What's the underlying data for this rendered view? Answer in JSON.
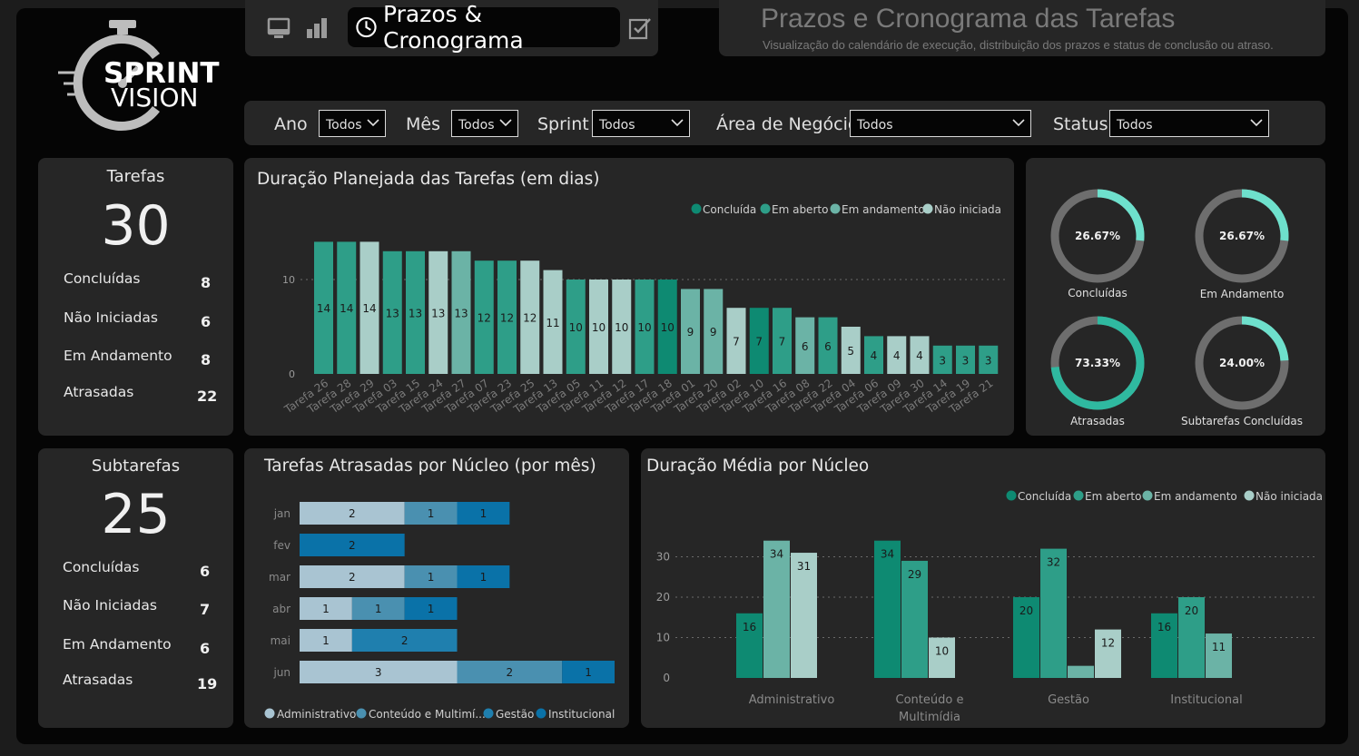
{
  "logo": {
    "line1": "SPRINT",
    "line2": "VISION"
  },
  "nav": {
    "active_label": "Prazos & Cronograma"
  },
  "header": {
    "title": "Prazos e Cronograma das Tarefas",
    "subtitle": "Visualização do calendário de execução, distribuição dos prazos e status de conclusão ou atraso."
  },
  "filters": [
    {
      "label": "Ano",
      "value": "Todos"
    },
    {
      "label": "Mês",
      "value": "Todos"
    },
    {
      "label": "Sprint",
      "value": "Todos"
    },
    {
      "label": "Área de Negócio",
      "value": "Todos"
    },
    {
      "label": "Status",
      "value": "Todos"
    }
  ],
  "tarefas_card": {
    "title": "Tarefas",
    "total": "30",
    "rows": [
      {
        "label": "Concluídas",
        "value": "8"
      },
      {
        "label": "Não Iniciadas",
        "value": "6"
      },
      {
        "label": "Em Andamento",
        "value": "8"
      },
      {
        "label": "Atrasadas",
        "value": "22"
      }
    ]
  },
  "subtarefas_card": {
    "title": "Subtarefas",
    "total": "25",
    "rows": [
      {
        "label": "Concluídas",
        "value": "6"
      },
      {
        "label": "Não Iniciadas",
        "value": "7"
      },
      {
        "label": "Em Andamento",
        "value": "6"
      },
      {
        "label": "Atrasadas",
        "value": "19"
      }
    ]
  },
  "colors": {
    "concluida": "#0e8a72",
    "em_aberto": "#2e9e88",
    "em_andamento": "#6bb3a6",
    "nao_iniciada": "#a9cec8",
    "admin": "#a9c4d2",
    "conteudo": "#4a90b0",
    "gestao": "#1f7fae",
    "institucional": "#0a72a8"
  },
  "chart_data": [
    {
      "type": "bar",
      "title": "Duração Planejada das Tarefas (em dias)",
      "legend": [
        "Concluída",
        "Em aberto",
        "Em andamento",
        "Não iniciada"
      ],
      "legend_position": "top-right",
      "yticks": [
        "0",
        "10"
      ],
      "ylim": [
        0,
        16
      ],
      "grid": true,
      "categories": [
        "Tarefa 26",
        "Tarefa 28",
        "Tarefa 29",
        "Tarefa 03",
        "Tarefa 15",
        "Tarefa 24",
        "Tarefa 27",
        "Tarefa 07",
        "Tarefa 23",
        "Tarefa 25",
        "Tarefa 13",
        "Tarefa 05",
        "Tarefa 11",
        "Tarefa 12",
        "Tarefa 17",
        "Tarefa 18",
        "Tarefa 01",
        "Tarefa 20",
        "Tarefa 02",
        "Tarefa 10",
        "Tarefa 16",
        "Tarefa 08",
        "Tarefa 22",
        "Tarefa 04",
        "Tarefa 06",
        "Tarefa 09",
        "Tarefa 30",
        "Tarefa 14",
        "Tarefa 19",
        "Tarefa 21"
      ],
      "values": [
        14,
        14,
        14,
        13,
        13,
        13,
        13,
        12,
        12,
        12,
        11,
        10,
        10,
        10,
        10,
        10,
        9,
        9,
        7,
        7,
        7,
        6,
        6,
        5,
        4,
        4,
        4,
        3,
        3,
        3
      ],
      "status": [
        "Em aberto",
        "Em aberto",
        "Não iniciada",
        "Em aberto",
        "Em aberto",
        "Não iniciada",
        "Em andamento",
        "Em aberto",
        "Em aberto",
        "Não iniciada",
        "Não iniciada",
        "Em aberto",
        "Não iniciada",
        "Não iniciada",
        "Em aberto",
        "Concluída",
        "Em andamento",
        "Em andamento",
        "Não iniciada",
        "Concluída",
        "Em aberto",
        "Em andamento",
        "Em aberto",
        "Não iniciada",
        "Em aberto",
        "Não iniciada",
        "Não iniciada",
        "Em aberto",
        "Em aberto",
        "Em aberto"
      ]
    },
    {
      "type": "pie",
      "title": "",
      "gauges": [
        {
          "label": "Concluídas",
          "value": 26.67,
          "text": "26.67%",
          "color": "#6ee0cc"
        },
        {
          "label": "Em Andamento",
          "value": 26.67,
          "text": "26.67%",
          "color": "#6ee0cc"
        },
        {
          "label": "Atrasadas",
          "value": 73.33,
          "text": "73.33%",
          "color": "#2fb9a0"
        },
        {
          "label": "Subtarefas Concluídas",
          "value": 24.0,
          "text": "24.00%",
          "color": "#6ee0cc"
        }
      ]
    },
    {
      "type": "bar",
      "orientation": "horizontal-stacked",
      "title": "Tarefas Atrasadas por Núcleo (por mês)",
      "categories": [
        "jan",
        "fev",
        "mar",
        "abr",
        "mai",
        "jun"
      ],
      "legend_position": "bottom",
      "series": [
        {
          "name": "Administrativo",
          "values": [
            2,
            0,
            2,
            1,
            1,
            3
          ]
        },
        {
          "name": "Conteúdo e Multimí...",
          "values": [
            1,
            0,
            1,
            1,
            0,
            2
          ]
        },
        {
          "name": "Gestão",
          "values": [
            0,
            0,
            0,
            0,
            2,
            0
          ]
        },
        {
          "name": "Institucional",
          "values": [
            1,
            2,
            1,
            1,
            0,
            1
          ]
        }
      ]
    },
    {
      "type": "bar",
      "title": "Duração Média por Núcleo",
      "legend_position": "top-right",
      "yticks": [
        "0",
        "10",
        "20",
        "30"
      ],
      "ylim": [
        0,
        36
      ],
      "grid": true,
      "categories": [
        "Administrativo",
        "Conteúdo e Multimídia",
        "Gestão",
        "Institucional"
      ],
      "category_lines": [
        [
          "Administrativo"
        ],
        [
          "Conteúdo e",
          "Multimídia"
        ],
        [
          "Gestão"
        ],
        [
          "Institucional"
        ]
      ],
      "series": [
        {
          "name": "Concluída",
          "values": [
            16,
            34,
            20,
            16
          ]
        },
        {
          "name": "Em aberto",
          "values": [
            null,
            29,
            32,
            20
          ]
        },
        {
          "name": "Em andamento",
          "values": [
            34,
            null,
            3,
            11
          ]
        },
        {
          "name": "Não iniciada",
          "values": [
            31,
            10,
            12,
            null
          ]
        }
      ]
    }
  ]
}
